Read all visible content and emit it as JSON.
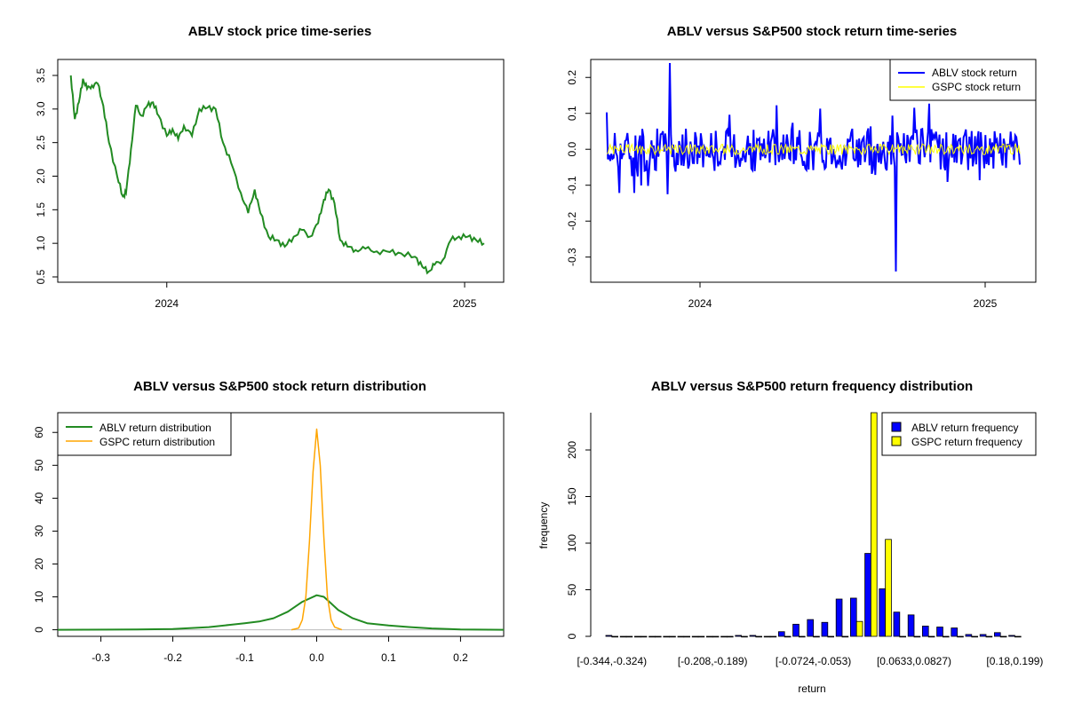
{
  "colors": {
    "abl_price": "#228B22",
    "abl_ret": "#0000FF",
    "gspc_ret": "#FFFF00",
    "abl_dens": "#228B22",
    "gspc_dens": "#FFA500",
    "frame": "#000000"
  },
  "chart_data": [
    {
      "type": "line",
      "title": "ABLV stock price time-series",
      "xlabel": "",
      "ylabel": "",
      "x_ticks": [
        "2024",
        "2025"
      ],
      "y_ticks": [
        "0.5",
        "1.0",
        "1.5",
        "2.0",
        "2.5",
        "3.0",
        "3.5"
      ],
      "ylim": [
        0.5,
        3.5
      ],
      "xlim": [
        "2023-09",
        "2025-02"
      ],
      "series": [
        {
          "values_by_date": [
            [
              "2023-09-05",
              3.5
            ],
            [
              "2023-09-10",
              2.85
            ],
            [
              "2023-09-15",
              3.1
            ],
            [
              "2023-09-20",
              3.45
            ],
            [
              "2023-09-25",
              3.3
            ],
            [
              "2023-10-01",
              3.35
            ],
            [
              "2023-10-08",
              3.38
            ],
            [
              "2023-10-15",
              3.05
            ],
            [
              "2023-10-22",
              2.5
            ],
            [
              "2023-11-01",
              2.0
            ],
            [
              "2023-11-08",
              1.7
            ],
            [
              "2023-11-12",
              1.75
            ],
            [
              "2023-11-18",
              2.4
            ],
            [
              "2023-11-24",
              3.05
            ],
            [
              "2023-12-01",
              2.9
            ],
            [
              "2023-12-08",
              3.05
            ],
            [
              "2023-12-15",
              3.1
            ],
            [
              "2023-12-22",
              2.9
            ],
            [
              "2024-01-01",
              2.6
            ],
            [
              "2024-01-08",
              2.7
            ],
            [
              "2024-01-15",
              2.55
            ],
            [
              "2024-01-22",
              2.75
            ],
            [
              "2024-02-01",
              2.6
            ],
            [
              "2024-02-10",
              3.0
            ],
            [
              "2024-02-20",
              3.02
            ],
            [
              "2024-03-01",
              3.0
            ],
            [
              "2024-03-10",
              2.5
            ],
            [
              "2024-03-20",
              2.2
            ],
            [
              "2024-04-01",
              1.75
            ],
            [
              "2024-04-10",
              1.45
            ],
            [
              "2024-04-18",
              1.8
            ],
            [
              "2024-04-25",
              1.45
            ],
            [
              "2024-05-05",
              1.1
            ],
            [
              "2024-05-15",
              1.05
            ],
            [
              "2024-05-25",
              0.95
            ],
            [
              "2024-06-05",
              1.1
            ],
            [
              "2024-06-15",
              1.2
            ],
            [
              "2024-06-25",
              1.1
            ],
            [
              "2024-07-05",
              1.3
            ],
            [
              "2024-07-12",
              1.65
            ],
            [
              "2024-07-18",
              1.8
            ],
            [
              "2024-07-25",
              1.6
            ],
            [
              "2024-08-01",
              1.05
            ],
            [
              "2024-08-10",
              0.95
            ],
            [
              "2024-08-20",
              0.9
            ],
            [
              "2024-09-01",
              0.92
            ],
            [
              "2024-09-15",
              0.88
            ],
            [
              "2024-10-01",
              0.87
            ],
            [
              "2024-10-15",
              0.85
            ],
            [
              "2024-11-01",
              0.8
            ],
            [
              "2024-11-10",
              0.65
            ],
            [
              "2024-11-18",
              0.58
            ],
            [
              "2024-11-25",
              0.68
            ],
            [
              "2024-12-05",
              0.75
            ],
            [
              "2024-12-15",
              1.05
            ],
            [
              "2024-12-25",
              1.1
            ],
            [
              "2025-01-05",
              1.1
            ],
            [
              "2025-01-15",
              1.05
            ],
            [
              "2025-01-25",
              1.0
            ]
          ]
        }
      ],
      "legend": null
    },
    {
      "type": "line",
      "title": "ABLV versus S&P500 stock return time-series",
      "xlabel": "",
      "ylabel": "",
      "x_ticks": [
        "2024",
        "2025"
      ],
      "y_ticks": [
        "-0.3",
        "-0.2",
        "-0.1",
        "0.0",
        "0.1",
        "0.2"
      ],
      "ylim": [
        -0.37,
        0.25
      ],
      "legend_position": "top-right",
      "series": [
        {
          "name": "ABLV stock return",
          "color": "blue"
        },
        {
          "name": "GSPC stock return",
          "color": "yellow"
        }
      ]
    },
    {
      "type": "line",
      "title": "ABLV versus S&P500 stock return distribution",
      "xlabel": "",
      "ylabel": "",
      "x_ticks": [
        "-0.3",
        "-0.2",
        "-0.1",
        "0.0",
        "0.1",
        "0.2"
      ],
      "y_ticks": [
        "0",
        "10",
        "20",
        "30",
        "40",
        "50",
        "60"
      ],
      "xlim": [
        -0.36,
        0.26
      ],
      "ylim": [
        -2,
        66
      ],
      "legend_position": "top-left",
      "series": [
        {
          "name": "ABLV return distribution",
          "x": [
            -0.36,
            -0.25,
            -0.2,
            -0.15,
            -0.12,
            -0.1,
            -0.08,
            -0.06,
            -0.04,
            -0.02,
            0.0,
            0.01,
            0.02,
            0.03,
            0.05,
            0.07,
            0.1,
            0.13,
            0.16,
            0.2,
            0.26
          ],
          "values": [
            0.0,
            0.1,
            0.2,
            0.8,
            1.5,
            2.0,
            2.5,
            3.5,
            5.5,
            8.5,
            10.5,
            10.0,
            8.0,
            6.0,
            3.5,
            2.0,
            1.3,
            0.8,
            0.4,
            0.1,
            0.0
          ]
        },
        {
          "name": "GSPC return distribution",
          "x": [
            -0.035,
            -0.025,
            -0.02,
            -0.015,
            -0.01,
            -0.005,
            0.0,
            0.005,
            0.01,
            0.015,
            0.02,
            0.025,
            0.035
          ],
          "values": [
            0.0,
            0.5,
            3.0,
            10.0,
            27.0,
            48.0,
            61.0,
            50.0,
            28.0,
            10.0,
            3.0,
            0.8,
            0.0
          ]
        }
      ]
    },
    {
      "type": "bar",
      "title": "ABLV versus S&P500 return frequency distribution",
      "xlabel": "return",
      "ylabel": "frequency",
      "x_ticks": [
        "[-0.344,-0.324)",
        "[-0.208,-0.189)",
        "[-0.0724,-0.053)",
        "[0.0633,0.0827)",
        "[0.18,0.199)"
      ],
      "y_ticks": [
        "0",
        "50",
        "100",
        "150",
        "200"
      ],
      "ylim": [
        0,
        240
      ],
      "legend_position": "top-right",
      "bins": 29,
      "series": [
        {
          "name": "ABLV return frequency",
          "color": "blue",
          "values": [
            1,
            0,
            0,
            0,
            0,
            0,
            0,
            0,
            0,
            1,
            1,
            0,
            5,
            13,
            18,
            15,
            40,
            41,
            89,
            51,
            26,
            23,
            11,
            10,
            9,
            2,
            2,
            4,
            1
          ]
        },
        {
          "name": "GSPC return frequency",
          "color": "yellow",
          "values": [
            0,
            0,
            0,
            0,
            0,
            0,
            0,
            0,
            0,
            0,
            0,
            0,
            0,
            0,
            0,
            0,
            0,
            16,
            240,
            104,
            0,
            0,
            0,
            0,
            0,
            0,
            0,
            0,
            0
          ]
        }
      ]
    }
  ]
}
